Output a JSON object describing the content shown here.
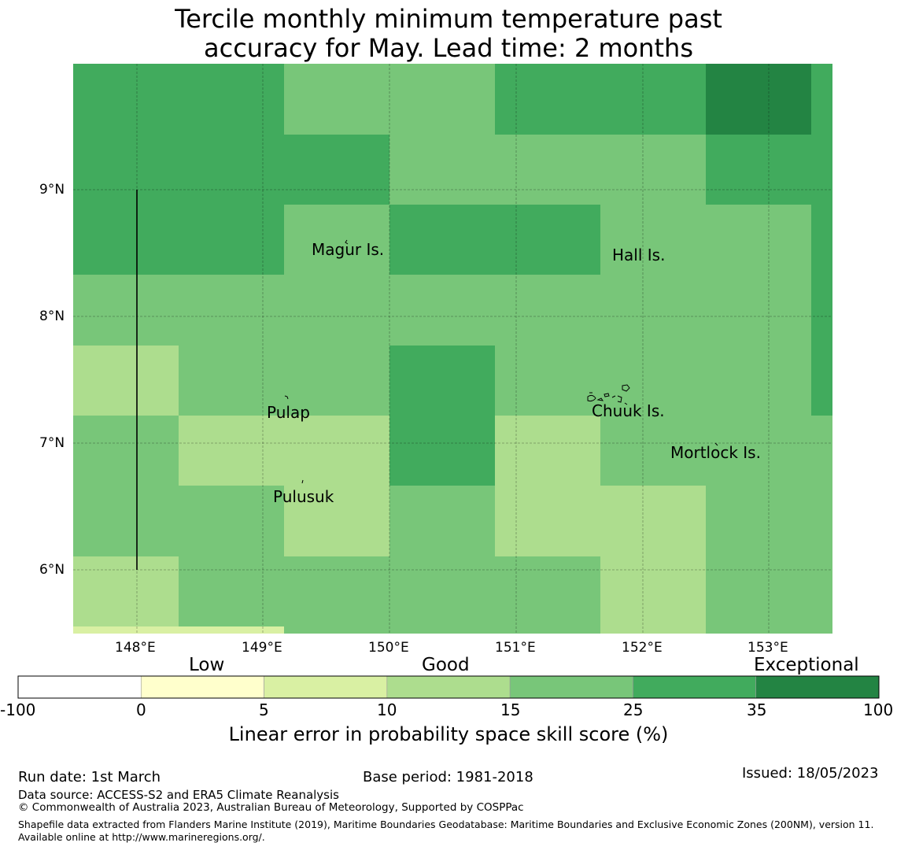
{
  "title": {
    "line1": "Tercile monthly minimum temperature past",
    "line2": "accuracy for May. Lead time: 2 months"
  },
  "map": {
    "lat_labels": [
      "9°N",
      "8°N",
      "7°N",
      "6°N"
    ],
    "lon_labels": [
      "148°E",
      "149°E",
      "150°E",
      "151°E",
      "152°E",
      "153°E"
    ],
    "place_labels": [
      "Magur Is.",
      "Hall Is.",
      "Pulap",
      "Chuuk Is.",
      "Mortlock Is.",
      "Pulusuk"
    ],
    "colors": {
      "c0_5": "#ffffcc",
      "c5_10": "#d9f0a3",
      "c10_15": "#addd8e",
      "c15_25": "#78c679",
      "c25_35": "#41ab5d",
      "c35_100": "#238443"
    },
    "grid_skill_classes": [
      [
        "c25_35",
        "c25_35",
        "c15_25",
        "c15_25",
        "c25_35",
        "c25_35",
        "c35_100",
        "c25_35"
      ],
      [
        "c25_35",
        "c25_35",
        "c25_35",
        "c15_25",
        "c15_25",
        "c15_25",
        "c25_35",
        "c25_35"
      ],
      [
        "c25_35",
        "c25_35",
        "c15_25",
        "c25_35",
        "c25_35",
        "c15_25",
        "c15_25",
        "c25_35"
      ],
      [
        "c15_25",
        "c15_25",
        "c15_25",
        "c15_25",
        "c15_25",
        "c15_25",
        "c15_25",
        "c25_35"
      ],
      [
        "c10_15",
        "c15_25",
        "c15_25",
        "c25_35",
        "c15_25",
        "c15_25",
        "c15_25",
        "c25_35"
      ],
      [
        "c15_25",
        "c10_15",
        "c10_15",
        "c25_35",
        "c10_15",
        "c15_25",
        "c15_25",
        "c15_25"
      ],
      [
        "c15_25",
        "c15_25",
        "c10_15",
        "c15_25",
        "c10_15",
        "c10_15",
        "c15_25",
        "c15_25"
      ],
      [
        "c10_15",
        "c15_25",
        "c15_25",
        "c15_25",
        "c15_25",
        "c10_15",
        "c15_25",
        "c15_25"
      ]
    ]
  },
  "colorbar": {
    "categories": [
      "Low",
      "Good",
      "Exceptional"
    ],
    "ticks": [
      "-100",
      "0",
      "5",
      "10",
      "15",
      "25",
      "35",
      "100"
    ],
    "bins": [
      "#ffffff",
      "#ffffcc",
      "#d9f0a3",
      "#addd8e",
      "#78c679",
      "#41ab5d",
      "#238443"
    ],
    "title": "Linear error in probability space skill score (%)"
  },
  "footer": {
    "run_date": "Run date: 1st March",
    "base_period": "Base period: 1981-2018",
    "issued": "Issued: 18/05/2023",
    "data_source": "Data source: ACCESS-S2 and ERA5 Climate Reanalysis",
    "copyright": "© Commonwealth of Australia 2023, Australian Bureau of Meteorology, Supported by COSPPac",
    "shapefile": "Shapefile data extracted from Flanders Marine Institute (2019), Maritime Boundaries Geodatabase: Maritime Boundaries and Exclusive Economic Zones (200NM), version 11. Available online at http://www.marineregions.org/."
  }
}
